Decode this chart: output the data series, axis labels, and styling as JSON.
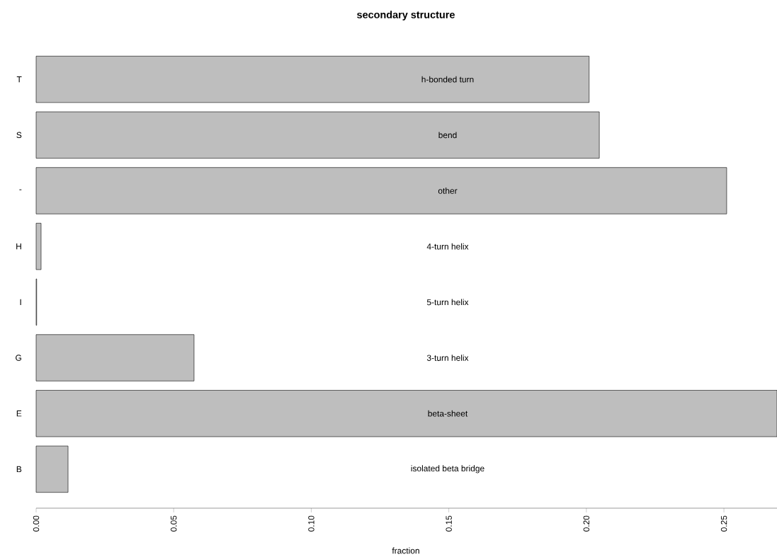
{
  "chart_data": {
    "type": "bar",
    "orientation": "horizontal",
    "title": "secondary structure",
    "xlabel": "fraction",
    "categories": [
      "T",
      "S",
      "-",
      "H",
      "I",
      "G",
      "E",
      "B"
    ],
    "values": [
      0.201,
      0.2047,
      0.251,
      0.0018,
      0.0002,
      0.0574,
      0.2693,
      0.0116
    ],
    "color": "#bebebe",
    "xlim": [
      0,
      0.2693
    ],
    "xticks": [
      {
        "value": 0,
        "label": "0.00"
      },
      {
        "value": 0.05,
        "label": "0.05"
      },
      {
        "value": 0.1,
        "label": "0.10"
      },
      {
        "value": 0.15,
        "label": "0.15"
      },
      {
        "value": 0.2,
        "label": "0.20"
      },
      {
        "value": 0.25,
        "label": "0.25"
      }
    ],
    "annotations": [
      "h-bonded turn",
      "bend",
      "other",
      "4-turn helix",
      "5-turn helix",
      "3-turn helix",
      "beta-sheet",
      "isolated beta bridge"
    ],
    "grid": false
  }
}
